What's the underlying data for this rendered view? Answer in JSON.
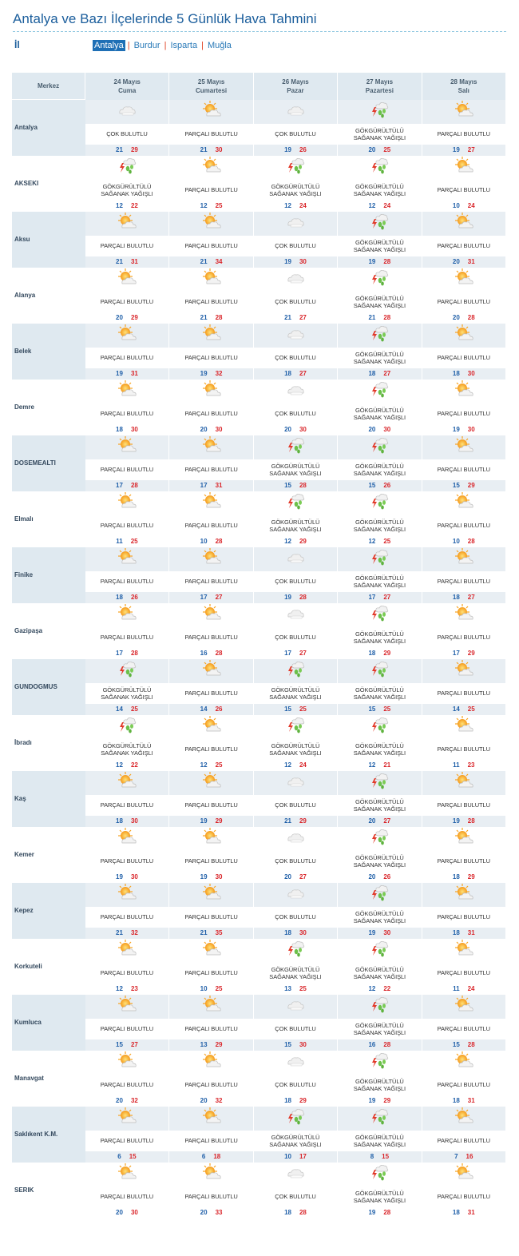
{
  "page": {
    "title": "Antalya ve Bazı İlçelerinde 5 Günlük Hava Tahmini",
    "il_label": "İl",
    "provinces": [
      "Antalya",
      "Burdur",
      "Isparta",
      "Muğla"
    ],
    "separator": "|",
    "active_province": "Antalya"
  },
  "colors": {
    "accent": "#1b5e9c",
    "header_bg": "#dfe9f0",
    "min_temp": "#1f5fa8",
    "max_temp": "#d9252a"
  },
  "table": {
    "merkez_header": "Merkez",
    "days": [
      {
        "date": "24 Mayıs",
        "weekday": "Cuma"
      },
      {
        "date": "25 Mayıs",
        "weekday": "Cumartesi"
      },
      {
        "date": "26 Mayıs",
        "weekday": "Pazar"
      },
      {
        "date": "27 Mayıs",
        "weekday": "Pazartesi"
      },
      {
        "date": "28 Mayıs",
        "weekday": "Salı"
      }
    ],
    "conditions": {
      "CB": {
        "text": "ÇOK BULUTLU",
        "icon": "cloudy-icon"
      },
      "PB": {
        "text": "PARÇALI BULUTLU",
        "icon": "partly-cloudy-icon"
      },
      "GSY": {
        "text": "GÖKGÜRÜLTÜLÜ SAĞANAK YAĞIŞLI",
        "icon": "thunder-shower-icon"
      }
    },
    "rows": [
      {
        "city": "Antalya",
        "days": [
          [
            "CB",
            21,
            29
          ],
          [
            "PB",
            21,
            30
          ],
          [
            "CB",
            19,
            26
          ],
          [
            "GSY",
            20,
            25
          ],
          [
            "PB",
            19,
            27
          ]
        ]
      },
      {
        "city": "AKSEKI",
        "days": [
          [
            "GSY",
            12,
            22
          ],
          [
            "PB",
            12,
            25
          ],
          [
            "GSY",
            12,
            24
          ],
          [
            "GSY",
            12,
            24
          ],
          [
            "PB",
            10,
            24
          ]
        ]
      },
      {
        "city": "Aksu",
        "days": [
          [
            "PB",
            21,
            31
          ],
          [
            "PB",
            21,
            34
          ],
          [
            "CB",
            19,
            30
          ],
          [
            "GSY",
            19,
            28
          ],
          [
            "PB",
            20,
            31
          ]
        ]
      },
      {
        "city": "Alanya",
        "days": [
          [
            "PB",
            20,
            29
          ],
          [
            "PB",
            21,
            28
          ],
          [
            "CB",
            21,
            27
          ],
          [
            "GSY",
            21,
            28
          ],
          [
            "PB",
            20,
            28
          ]
        ]
      },
      {
        "city": "Belek",
        "days": [
          [
            "PB",
            19,
            31
          ],
          [
            "PB",
            19,
            32
          ],
          [
            "CB",
            18,
            27
          ],
          [
            "GSY",
            18,
            27
          ],
          [
            "PB",
            18,
            30
          ]
        ]
      },
      {
        "city": "Demre",
        "days": [
          [
            "PB",
            18,
            30
          ],
          [
            "PB",
            20,
            30
          ],
          [
            "CB",
            20,
            30
          ],
          [
            "GSY",
            20,
            30
          ],
          [
            "PB",
            19,
            30
          ]
        ]
      },
      {
        "city": "DOSEMEALTI",
        "days": [
          [
            "PB",
            17,
            28
          ],
          [
            "PB",
            17,
            31
          ],
          [
            "GSY",
            15,
            28
          ],
          [
            "GSY",
            15,
            26
          ],
          [
            "PB",
            15,
            29
          ]
        ]
      },
      {
        "city": "Elmalı",
        "days": [
          [
            "PB",
            11,
            25
          ],
          [
            "PB",
            10,
            28
          ],
          [
            "GSY",
            12,
            29
          ],
          [
            "GSY",
            12,
            25
          ],
          [
            "PB",
            10,
            28
          ]
        ]
      },
      {
        "city": "Finike",
        "days": [
          [
            "PB",
            18,
            26
          ],
          [
            "PB",
            17,
            27
          ],
          [
            "CB",
            19,
            28
          ],
          [
            "GSY",
            17,
            27
          ],
          [
            "PB",
            18,
            27
          ]
        ]
      },
      {
        "city": "Gazipaşa",
        "days": [
          [
            "PB",
            17,
            28
          ],
          [
            "PB",
            16,
            28
          ],
          [
            "CB",
            17,
            27
          ],
          [
            "GSY",
            18,
            29
          ],
          [
            "PB",
            17,
            29
          ]
        ]
      },
      {
        "city": "GUNDOGMUS",
        "days": [
          [
            "GSY",
            14,
            25
          ],
          [
            "PB",
            14,
            26
          ],
          [
            "GSY",
            15,
            25
          ],
          [
            "GSY",
            15,
            25
          ],
          [
            "PB",
            14,
            25
          ]
        ]
      },
      {
        "city": "İbradı",
        "days": [
          [
            "GSY",
            12,
            22
          ],
          [
            "PB",
            12,
            25
          ],
          [
            "GSY",
            12,
            24
          ],
          [
            "GSY",
            12,
            21
          ],
          [
            "PB",
            11,
            23
          ]
        ]
      },
      {
        "city": "Kaş",
        "days": [
          [
            "PB",
            18,
            30
          ],
          [
            "PB",
            19,
            29
          ],
          [
            "CB",
            21,
            29
          ],
          [
            "GSY",
            20,
            27
          ],
          [
            "PB",
            19,
            28
          ]
        ]
      },
      {
        "city": "Kemer",
        "days": [
          [
            "PB",
            19,
            30
          ],
          [
            "PB",
            19,
            30
          ],
          [
            "CB",
            20,
            27
          ],
          [
            "GSY",
            20,
            26
          ],
          [
            "PB",
            18,
            29
          ]
        ]
      },
      {
        "city": "Kepez",
        "days": [
          [
            "PB",
            21,
            32
          ],
          [
            "PB",
            21,
            35
          ],
          [
            "CB",
            18,
            30
          ],
          [
            "GSY",
            19,
            30
          ],
          [
            "PB",
            18,
            31
          ]
        ]
      },
      {
        "city": "Korkuteli",
        "days": [
          [
            "PB",
            12,
            23
          ],
          [
            "PB",
            10,
            25
          ],
          [
            "GSY",
            13,
            25
          ],
          [
            "GSY",
            12,
            22
          ],
          [
            "PB",
            11,
            24
          ]
        ]
      },
      {
        "city": "Kumluca",
        "days": [
          [
            "PB",
            15,
            27
          ],
          [
            "PB",
            13,
            29
          ],
          [
            "CB",
            15,
            30
          ],
          [
            "GSY",
            16,
            28
          ],
          [
            "PB",
            15,
            28
          ]
        ]
      },
      {
        "city": "Manavgat",
        "days": [
          [
            "PB",
            20,
            32
          ],
          [
            "PB",
            20,
            32
          ],
          [
            "CB",
            18,
            29
          ],
          [
            "GSY",
            19,
            29
          ],
          [
            "PB",
            18,
            31
          ]
        ]
      },
      {
        "city": "Saklıkent K.M.",
        "days": [
          [
            "PB",
            6,
            15
          ],
          [
            "PB",
            6,
            18
          ],
          [
            "GSY",
            10,
            17
          ],
          [
            "GSY",
            8,
            15
          ],
          [
            "PB",
            7,
            16
          ]
        ]
      },
      {
        "city": "SERIK",
        "days": [
          [
            "PB",
            20,
            30
          ],
          [
            "PB",
            20,
            33
          ],
          [
            "CB",
            18,
            28
          ],
          [
            "GSY",
            19,
            28
          ],
          [
            "PB",
            18,
            31
          ]
        ]
      }
    ]
  }
}
